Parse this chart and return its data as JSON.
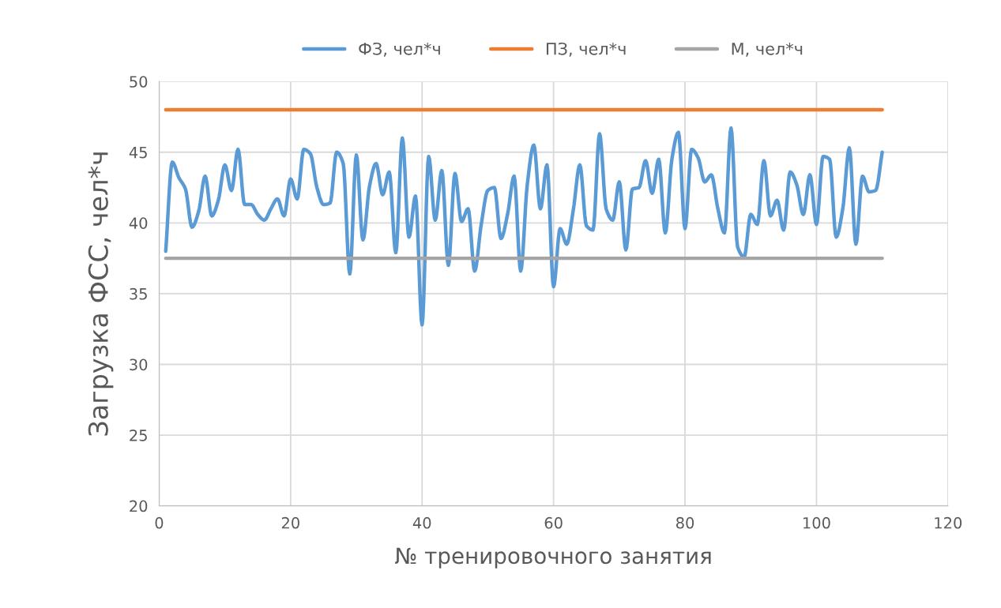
{
  "chart_data": {
    "type": "line",
    "xlabel": "№ тренировочного занятия",
    "ylabel": "Загрузка ФСС, чел*ч",
    "x": [
      1,
      2,
      3,
      4,
      5,
      6,
      7,
      8,
      9,
      10,
      11,
      12,
      13,
      14,
      15,
      16,
      17,
      18,
      19,
      20,
      21,
      22,
      23,
      24,
      25,
      26,
      27,
      28,
      29,
      30,
      31,
      32,
      33,
      34,
      35,
      36,
      37,
      38,
      39,
      40,
      41,
      42,
      43,
      44,
      45,
      46,
      47,
      48,
      49,
      50,
      51,
      52,
      53,
      54,
      55,
      56,
      57,
      58,
      59,
      60,
      61,
      62,
      63,
      64,
      65,
      66,
      67,
      68,
      69,
      70,
      71,
      72,
      73,
      74,
      75,
      76,
      77,
      78,
      79,
      80,
      81,
      82,
      83,
      84,
      85,
      86,
      87,
      88,
      89,
      90,
      91,
      92,
      93,
      94,
      95,
      96,
      97,
      98,
      99,
      100,
      101,
      102,
      103,
      104,
      105,
      106,
      107,
      108,
      109,
      110
    ],
    "series": [
      {
        "name": "ФЗ, чел*ч",
        "color": "#5b9bd5",
        "values": [
          38.0,
          44.3,
          43.2,
          42.4,
          39.7,
          40.8,
          43.3,
          40.5,
          41.6,
          44.1,
          42.3,
          45.2,
          41.3,
          41.3,
          40.6,
          40.2,
          41.0,
          41.7,
          40.5,
          43.1,
          41.7,
          45.2,
          44.9,
          42.5,
          41.3,
          41.4,
          45.0,
          44.2,
          36.4,
          44.8,
          38.8,
          42.6,
          44.2,
          42.0,
          43.6,
          37.9,
          46.0,
          39.0,
          41.9,
          32.8,
          44.7,
          40.2,
          43.7,
          37.0,
          43.5,
          40.1,
          41.0,
          36.6,
          39.9,
          42.3,
          42.5,
          38.9,
          40.6,
          43.3,
          36.6,
          42.7,
          45.5,
          41.0,
          44.1,
          35.5,
          39.6,
          38.5,
          40.9,
          44.1,
          39.8,
          39.5,
          46.3,
          41.0,
          40.2,
          42.9,
          38.1,
          42.4,
          42.5,
          44.4,
          42.1,
          44.5,
          39.3,
          44.5,
          46.4,
          39.6,
          45.2,
          44.6,
          42.9,
          43.4,
          41.0,
          39.3,
          46.7,
          38.3,
          37.6,
          40.6,
          39.9,
          44.4,
          40.5,
          41.6,
          39.5,
          43.6,
          42.7,
          40.6,
          43.4,
          39.9,
          44.7,
          44.5,
          39.0,
          41.0,
          45.3,
          38.5,
          43.3,
          42.2,
          42.3,
          45.0
        ]
      },
      {
        "name": "ПЗ, чел*ч",
        "color": "#ed7d31",
        "values": [
          48,
          48,
          48,
          48,
          48,
          48,
          48,
          48,
          48,
          48,
          48,
          48,
          48,
          48,
          48,
          48,
          48,
          48,
          48,
          48,
          48,
          48,
          48,
          48,
          48,
          48,
          48,
          48,
          48,
          48,
          48,
          48,
          48,
          48,
          48,
          48,
          48,
          48,
          48,
          48,
          48,
          48,
          48,
          48,
          48,
          48,
          48,
          48,
          48,
          48,
          48,
          48,
          48,
          48,
          48,
          48,
          48,
          48,
          48,
          48,
          48,
          48,
          48,
          48,
          48,
          48,
          48,
          48,
          48,
          48,
          48,
          48,
          48,
          48,
          48,
          48,
          48,
          48,
          48,
          48,
          48,
          48,
          48,
          48,
          48,
          48,
          48,
          48,
          48,
          48,
          48,
          48,
          48,
          48,
          48,
          48,
          48,
          48,
          48,
          48,
          48,
          48,
          48,
          48,
          48,
          48,
          48,
          48,
          48,
          48
        ]
      },
      {
        "name": "М, чел*ч",
        "color": "#a5a5a5",
        "values": [
          37.5,
          37.5,
          37.5,
          37.5,
          37.5,
          37.5,
          37.5,
          37.5,
          37.5,
          37.5,
          37.5,
          37.5,
          37.5,
          37.5,
          37.5,
          37.5,
          37.5,
          37.5,
          37.5,
          37.5,
          37.5,
          37.5,
          37.5,
          37.5,
          37.5,
          37.5,
          37.5,
          37.5,
          37.5,
          37.5,
          37.5,
          37.5,
          37.5,
          37.5,
          37.5,
          37.5,
          37.5,
          37.5,
          37.5,
          37.5,
          37.5,
          37.5,
          37.5,
          37.5,
          37.5,
          37.5,
          37.5,
          37.5,
          37.5,
          37.5,
          37.5,
          37.5,
          37.5,
          37.5,
          37.5,
          37.5,
          37.5,
          37.5,
          37.5,
          37.5,
          37.5,
          37.5,
          37.5,
          37.5,
          37.5,
          37.5,
          37.5,
          37.5,
          37.5,
          37.5,
          37.5,
          37.5,
          37.5,
          37.5,
          37.5,
          37.5,
          37.5,
          37.5,
          37.5,
          37.5,
          37.5,
          37.5,
          37.5,
          37.5,
          37.5,
          37.5,
          37.5,
          37.5,
          37.5,
          37.5,
          37.5,
          37.5,
          37.5,
          37.5,
          37.5,
          37.5,
          37.5,
          37.5,
          37.5,
          37.5,
          37.5,
          37.5,
          37.5,
          37.5,
          37.5,
          37.5,
          37.5,
          37.5,
          37.5,
          37.5
        ]
      }
    ],
    "xlim": [
      0,
      120
    ],
    "xticks": [
      0,
      20,
      40,
      60,
      80,
      100,
      120
    ],
    "ylim": [
      20,
      50
    ],
    "yticks": [
      20,
      25,
      30,
      35,
      40,
      45,
      50
    ],
    "grid": true,
    "legend": "top",
    "marker": "none",
    "line_style": "solid"
  }
}
